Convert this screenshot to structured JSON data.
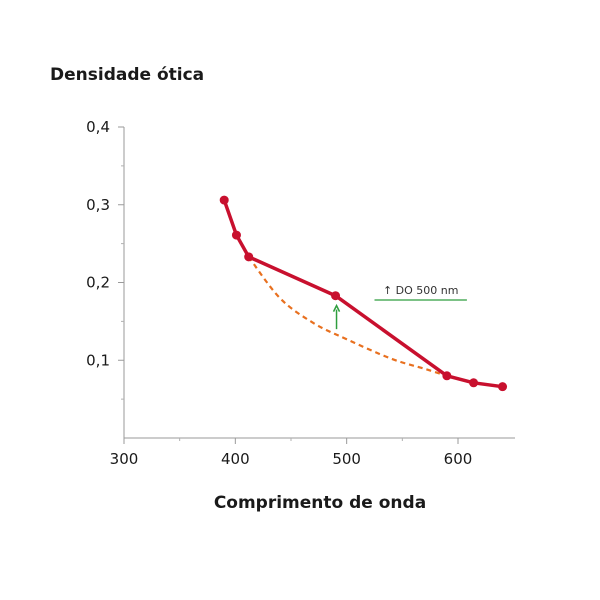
{
  "chart_data": {
    "type": "line",
    "ylabel": "Densidade ótica",
    "xlabel": "Comprimento de onda",
    "xlim": [
      300,
      640
    ],
    "ylim": [
      0,
      0.4
    ],
    "x_ticks": [
      "300",
      "400",
      "500",
      "600"
    ],
    "x_tick_values": [
      300,
      400,
      500,
      600
    ],
    "y_ticks": [
      "0,1",
      "0,2",
      "0,3",
      "0,4"
    ],
    "y_tick_values": [
      0.1,
      0.2,
      0.3,
      0.4
    ],
    "grid": false,
    "series": [
      {
        "style": "solid-markers",
        "color": "#c8102e",
        "points": [
          {
            "x": 390,
            "y": 0.306
          },
          {
            "x": 401,
            "y": 0.261
          },
          {
            "x": 412,
            "y": 0.233
          },
          {
            "x": 490,
            "y": 0.183
          },
          {
            "x": 590,
            "y": 0.08
          },
          {
            "x": 614,
            "y": 0.071
          },
          {
            "x": 640,
            "y": 0.066
          }
        ]
      },
      {
        "style": "dashed",
        "color": "#e8701f",
        "points": [
          {
            "x": 412,
            "y": 0.233
          },
          {
            "x": 440,
            "y": 0.18
          },
          {
            "x": 470,
            "y": 0.148
          },
          {
            "x": 500,
            "y": 0.127
          },
          {
            "x": 540,
            "y": 0.102
          },
          {
            "x": 570,
            "y": 0.089
          },
          {
            "x": 590,
            "y": 0.08
          }
        ]
      }
    ],
    "annotation": {
      "text": "↑ DO 500 nm",
      "arrow_x": 490,
      "arrow_from_y": 0.14,
      "arrow_to_y": 0.178,
      "color": "#2e9e3e",
      "label_x_start": 525,
      "label_x_end": 608,
      "label_y": 0.178
    }
  }
}
